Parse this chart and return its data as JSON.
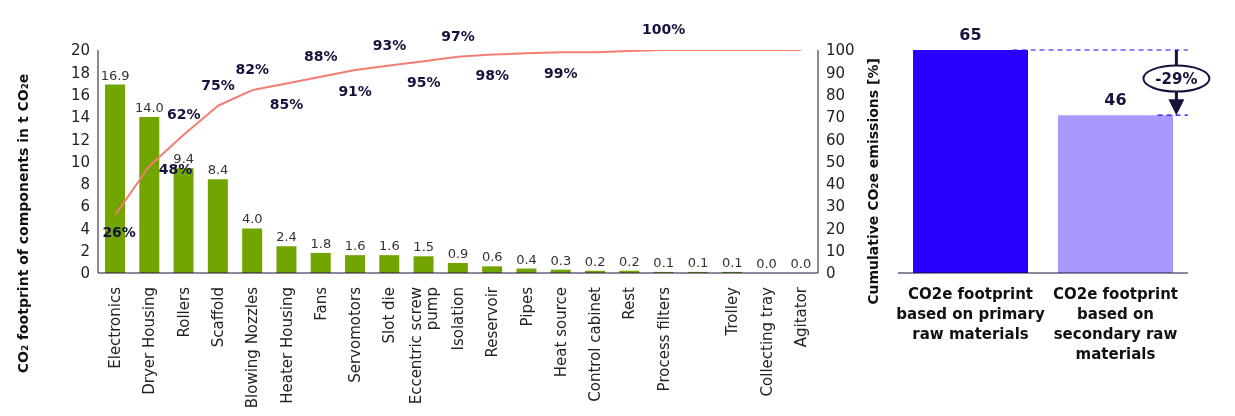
{
  "chart_data": [
    {
      "type": "bar",
      "categories": [
        "Electronics",
        "Dryer Housing",
        "Rollers",
        "Scaffold",
        "Blowing Nozzles",
        "Heater Housing",
        "Fans",
        "Servomotors",
        "Slot die",
        "Eccentric screw pump",
        "Isolation",
        "Reservoir",
        "Pipes",
        "Heat source",
        "Control cabinet",
        "Rest",
        "Process filters",
        null,
        "Trolley",
        "Collecting tray",
        "Agitator"
      ],
      "series": [
        {
          "type": "bar",
          "color": "#72a500",
          "values": [
            16.9,
            14.0,
            9.4,
            8.4,
            4.0,
            2.4,
            1.8,
            1.6,
            1.6,
            1.5,
            0.9,
            0.6,
            0.4,
            0.3,
            0.2,
            0.2,
            0.1,
            0.1,
            0.1,
            0.0,
            0.0
          ],
          "value_labels": [
            "16.9",
            "14.0",
            "9.4",
            "8.4",
            "4.0",
            "2.4",
            "1.8",
            "1.6",
            "1.6",
            "1.5",
            "0.9",
            "0.6",
            "0.4",
            "0.3",
            "0.2",
            "0.2",
            "0.1",
            "0.1",
            "0.1",
            "0.0",
            "0.0"
          ]
        },
        {
          "type": "line",
          "axis": "y2",
          "color": "#f47c72",
          "values": [
            26,
            48,
            62,
            75,
            82,
            85,
            88,
            91,
            93,
            95,
            97,
            98,
            98.5,
            99,
            99,
            99.5,
            100,
            100,
            100,
            100,
            100
          ],
          "value_labels": [
            "26%",
            "48%",
            "62%",
            "75%",
            "82%",
            "85%",
            "88%",
            "91%",
            "93%",
            "95%",
            "97%",
            "98%",
            null,
            "99%",
            null,
            null,
            "100%",
            null,
            null,
            null,
            null
          ]
        }
      ],
      "ylabel": "CO₂ footprint of components in t CO₂e",
      "y2label": "Cumulative CO₂e emissions [%]",
      "ylim": [
        0,
        20
      ],
      "yticks": [
        0,
        2,
        4,
        6,
        8,
        10,
        12,
        14,
        16,
        18,
        20
      ],
      "y2lim": [
        0,
        100
      ],
      "y2ticks": [
        0,
        10,
        20,
        30,
        40,
        50,
        60,
        70,
        80,
        90,
        100
      ],
      "grid": false,
      "legend": false,
      "marker": "none"
    },
    {
      "type": "bar",
      "categories": [
        "CO2e footprint based on primary raw materials",
        "CO2e footprint based on secondary raw materials"
      ],
      "values": [
        65,
        46
      ],
      "colors": [
        "#2800ff",
        "#a899ff"
      ],
      "data_labels": true,
      "ref_lines": [
        {
          "axis": "y",
          "value": 65,
          "label": null,
          "color": "#2800ff",
          "line_style": "dashed"
        },
        {
          "axis": "y",
          "value": 46,
          "label": null,
          "color": "#2800ff",
          "line_style": "dashed"
        }
      ],
      "annotations": [
        "-29%"
      ],
      "grid": false,
      "legend": false,
      "tick_labels": "x"
    }
  ]
}
